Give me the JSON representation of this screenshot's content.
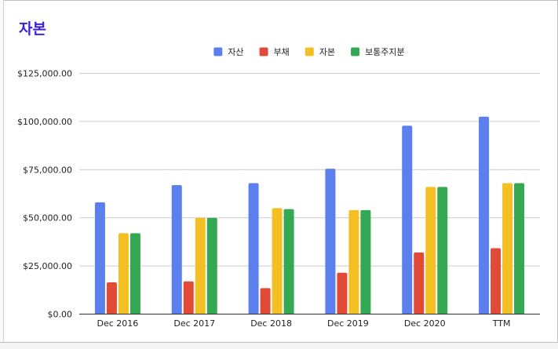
{
  "chart_data": {
    "type": "bar",
    "title": "자본",
    "categories": [
      "Dec 2016",
      "Dec 2017",
      "Dec 2018",
      "Dec 2019",
      "Dec 2020",
      "TTM"
    ],
    "series": [
      {
        "name": "자산",
        "color": "#5b7fec",
        "values": [
          58000,
          67000,
          68000,
          75500,
          97800,
          102500
        ]
      },
      {
        "name": "부채",
        "color": "#e04a36",
        "values": [
          16500,
          17000,
          13500,
          21500,
          32000,
          34200
        ]
      },
      {
        "name": "자본",
        "color": "#f3c024",
        "values": [
          42000,
          50000,
          55000,
          54000,
          66000,
          68000
        ]
      },
      {
        "name": "보통주지분",
        "color": "#34a853",
        "values": [
          42000,
          50000,
          54500,
          54000,
          66000,
          68000
        ]
      }
    ],
    "y_ticks": [
      "$0.00",
      "$25,000.00",
      "$50,000.00",
      "$75,000.00",
      "$100,000.00",
      "$125,000.00"
    ],
    "ylim": [
      0,
      125000
    ],
    "grid": true,
    "legend_position": "top"
  }
}
